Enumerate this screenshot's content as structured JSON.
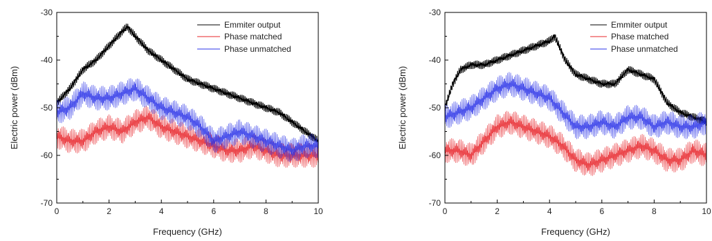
{
  "figure": {
    "background": "#ffffff"
  },
  "chart_data": [
    {
      "type": "line",
      "title": "",
      "xlabel": "Frequency (GHz)",
      "ylabel": "Electric power (dBm)",
      "xlim": [
        0,
        10
      ],
      "ylim": [
        -70,
        -30
      ],
      "xticks": [
        "0",
        "2",
        "4",
        "6",
        "8",
        "10"
      ],
      "yticks": [
        "-70",
        "-60",
        "-50",
        "-40",
        "-30"
      ],
      "grid": false,
      "legend_position": "top-right",
      "series": [
        {
          "name": "Emmiter output",
          "color": "#000000",
          "x": [
            0,
            0.5,
            1,
            1.5,
            2,
            2.5,
            2.7,
            3,
            3.5,
            4,
            4.5,
            5,
            5.5,
            6,
            6.5,
            7,
            7.5,
            8,
            8.5,
            9,
            9.5,
            10
          ],
          "y": [
            -49,
            -46,
            -42,
            -40,
            -37,
            -34,
            -33,
            -35,
            -38,
            -40,
            -42,
            -44,
            -45,
            -46,
            -47,
            -48,
            -49,
            -50,
            -51,
            -53,
            -55,
            -57
          ]
        },
        {
          "name": "Phase matched",
          "color": "#e8242a",
          "x": [
            0,
            0.5,
            1,
            1.5,
            2,
            2.5,
            3,
            3.5,
            4,
            4.5,
            5,
            5.5,
            6,
            6.5,
            7,
            7.5,
            8,
            8.5,
            9,
            9.5,
            10
          ],
          "y": [
            -56,
            -57,
            -57,
            -55,
            -54,
            -55,
            -53,
            -52,
            -54,
            -55,
            -56,
            -57,
            -58,
            -59,
            -59,
            -58,
            -59,
            -60,
            -60,
            -60,
            -60
          ]
        },
        {
          "name": "Phase unmatched",
          "color": "#2a33e8",
          "x": [
            0,
            0.5,
            1,
            1.5,
            2,
            2.5,
            3,
            3.5,
            4,
            4.5,
            5,
            5.5,
            6,
            6.5,
            7,
            7.5,
            8,
            8.5,
            9,
            9.5,
            10
          ],
          "y": [
            -51,
            -50,
            -47,
            -48,
            -48,
            -47,
            -46,
            -48,
            -50,
            -51,
            -52,
            -54,
            -57,
            -56,
            -55,
            -56,
            -57,
            -58,
            -59,
            -58,
            -58
          ]
        }
      ]
    },
    {
      "type": "line",
      "title": "",
      "xlabel": "Frequency (GHz)",
      "ylabel": "Electric power (dBm)",
      "xlim": [
        0,
        10
      ],
      "ylim": [
        -70,
        -30
      ],
      "xticks": [
        "0",
        "2",
        "4",
        "6",
        "8",
        "10"
      ],
      "yticks": [
        "-70",
        "-60",
        "-50",
        "-40",
        "-30"
      ],
      "grid": false,
      "legend_position": "top-right",
      "series": [
        {
          "name": "Emmiter output",
          "color": "#000000",
          "x": [
            0,
            0.3,
            0.6,
            1,
            1.5,
            2,
            2.5,
            3,
            3.5,
            4,
            4.2,
            4.6,
            5,
            5.5,
            6,
            6.5,
            7,
            7.5,
            8,
            8.5,
            9,
            9.5,
            10
          ],
          "y": [
            -50,
            -45,
            -42,
            -41,
            -41,
            -40,
            -39,
            -38,
            -37,
            -36,
            -35,
            -40,
            -43,
            -44,
            -45,
            -45,
            -42,
            -43,
            -44,
            -49,
            -51,
            -52,
            -53
          ]
        },
        {
          "name": "Phase matched",
          "color": "#e8242a",
          "x": [
            0,
            0.5,
            1,
            1.5,
            2,
            2.5,
            3,
            3.5,
            4,
            4.5,
            5,
            5.5,
            6,
            6.5,
            7,
            7.5,
            8,
            8.5,
            9,
            9.5,
            10
          ],
          "y": [
            -59,
            -59,
            -60,
            -57,
            -54,
            -53,
            -54,
            -55,
            -56,
            -58,
            -61,
            -62,
            -61,
            -60,
            -59,
            -58,
            -59,
            -61,
            -61,
            -59,
            -60
          ]
        },
        {
          "name": "Phase unmatched",
          "color": "#2a33e8",
          "x": [
            0,
            0.5,
            1,
            1.5,
            2,
            2.5,
            3,
            3.5,
            4,
            4.5,
            5,
            5.5,
            6,
            6.5,
            7,
            7.5,
            8,
            8.5,
            9,
            9.5,
            10
          ],
          "y": [
            -52,
            -51,
            -50,
            -48,
            -46,
            -45,
            -46,
            -47,
            -48,
            -51,
            -54,
            -54,
            -53,
            -54,
            -52,
            -52,
            -54,
            -53,
            -54,
            -54,
            -53
          ]
        }
      ]
    }
  ]
}
